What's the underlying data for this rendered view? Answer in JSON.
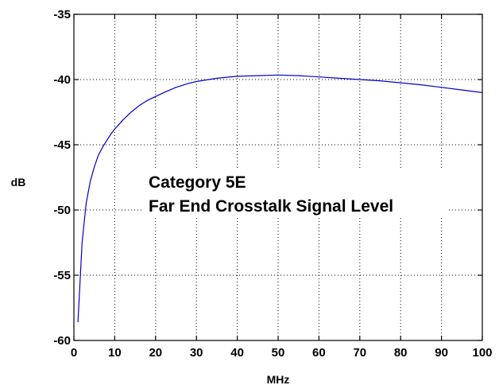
{
  "chart_data": {
    "type": "line",
    "title": "",
    "xlabel": "MHz",
    "ylabel": "dB",
    "xlim": [
      0,
      100
    ],
    "ylim": [
      -60,
      -35
    ],
    "grid": true,
    "xticks": [
      0,
      10,
      20,
      30,
      40,
      50,
      60,
      70,
      80,
      90,
      100
    ],
    "yticks": [
      -60,
      -55,
      -50,
      -45,
      -40,
      -35
    ],
    "annotations": [
      "Category 5E",
      "Far End Crosstalk Signal Level"
    ],
    "series": [
      {
        "color": "#0000cc",
        "x": [
          1,
          2,
          3,
          4,
          5,
          6,
          7,
          8,
          9,
          10,
          12,
          14,
          16,
          18,
          20,
          22,
          25,
          28,
          30,
          35,
          40,
          45,
          50,
          55,
          60,
          65,
          70,
          75,
          80,
          85,
          90,
          95,
          100
        ],
        "y": [
          -58.6,
          -52.5,
          -49.5,
          -47.8,
          -46.7,
          -45.8,
          -45.2,
          -44.7,
          -44.2,
          -43.8,
          -43.1,
          -42.5,
          -42.0,
          -41.6,
          -41.3,
          -41.0,
          -40.6,
          -40.3,
          -40.15,
          -39.9,
          -39.75,
          -39.7,
          -39.65,
          -39.7,
          -39.8,
          -39.9,
          -40.0,
          -40.1,
          -40.25,
          -40.4,
          -40.6,
          -40.8,
          -41.0
        ]
      }
    ]
  }
}
